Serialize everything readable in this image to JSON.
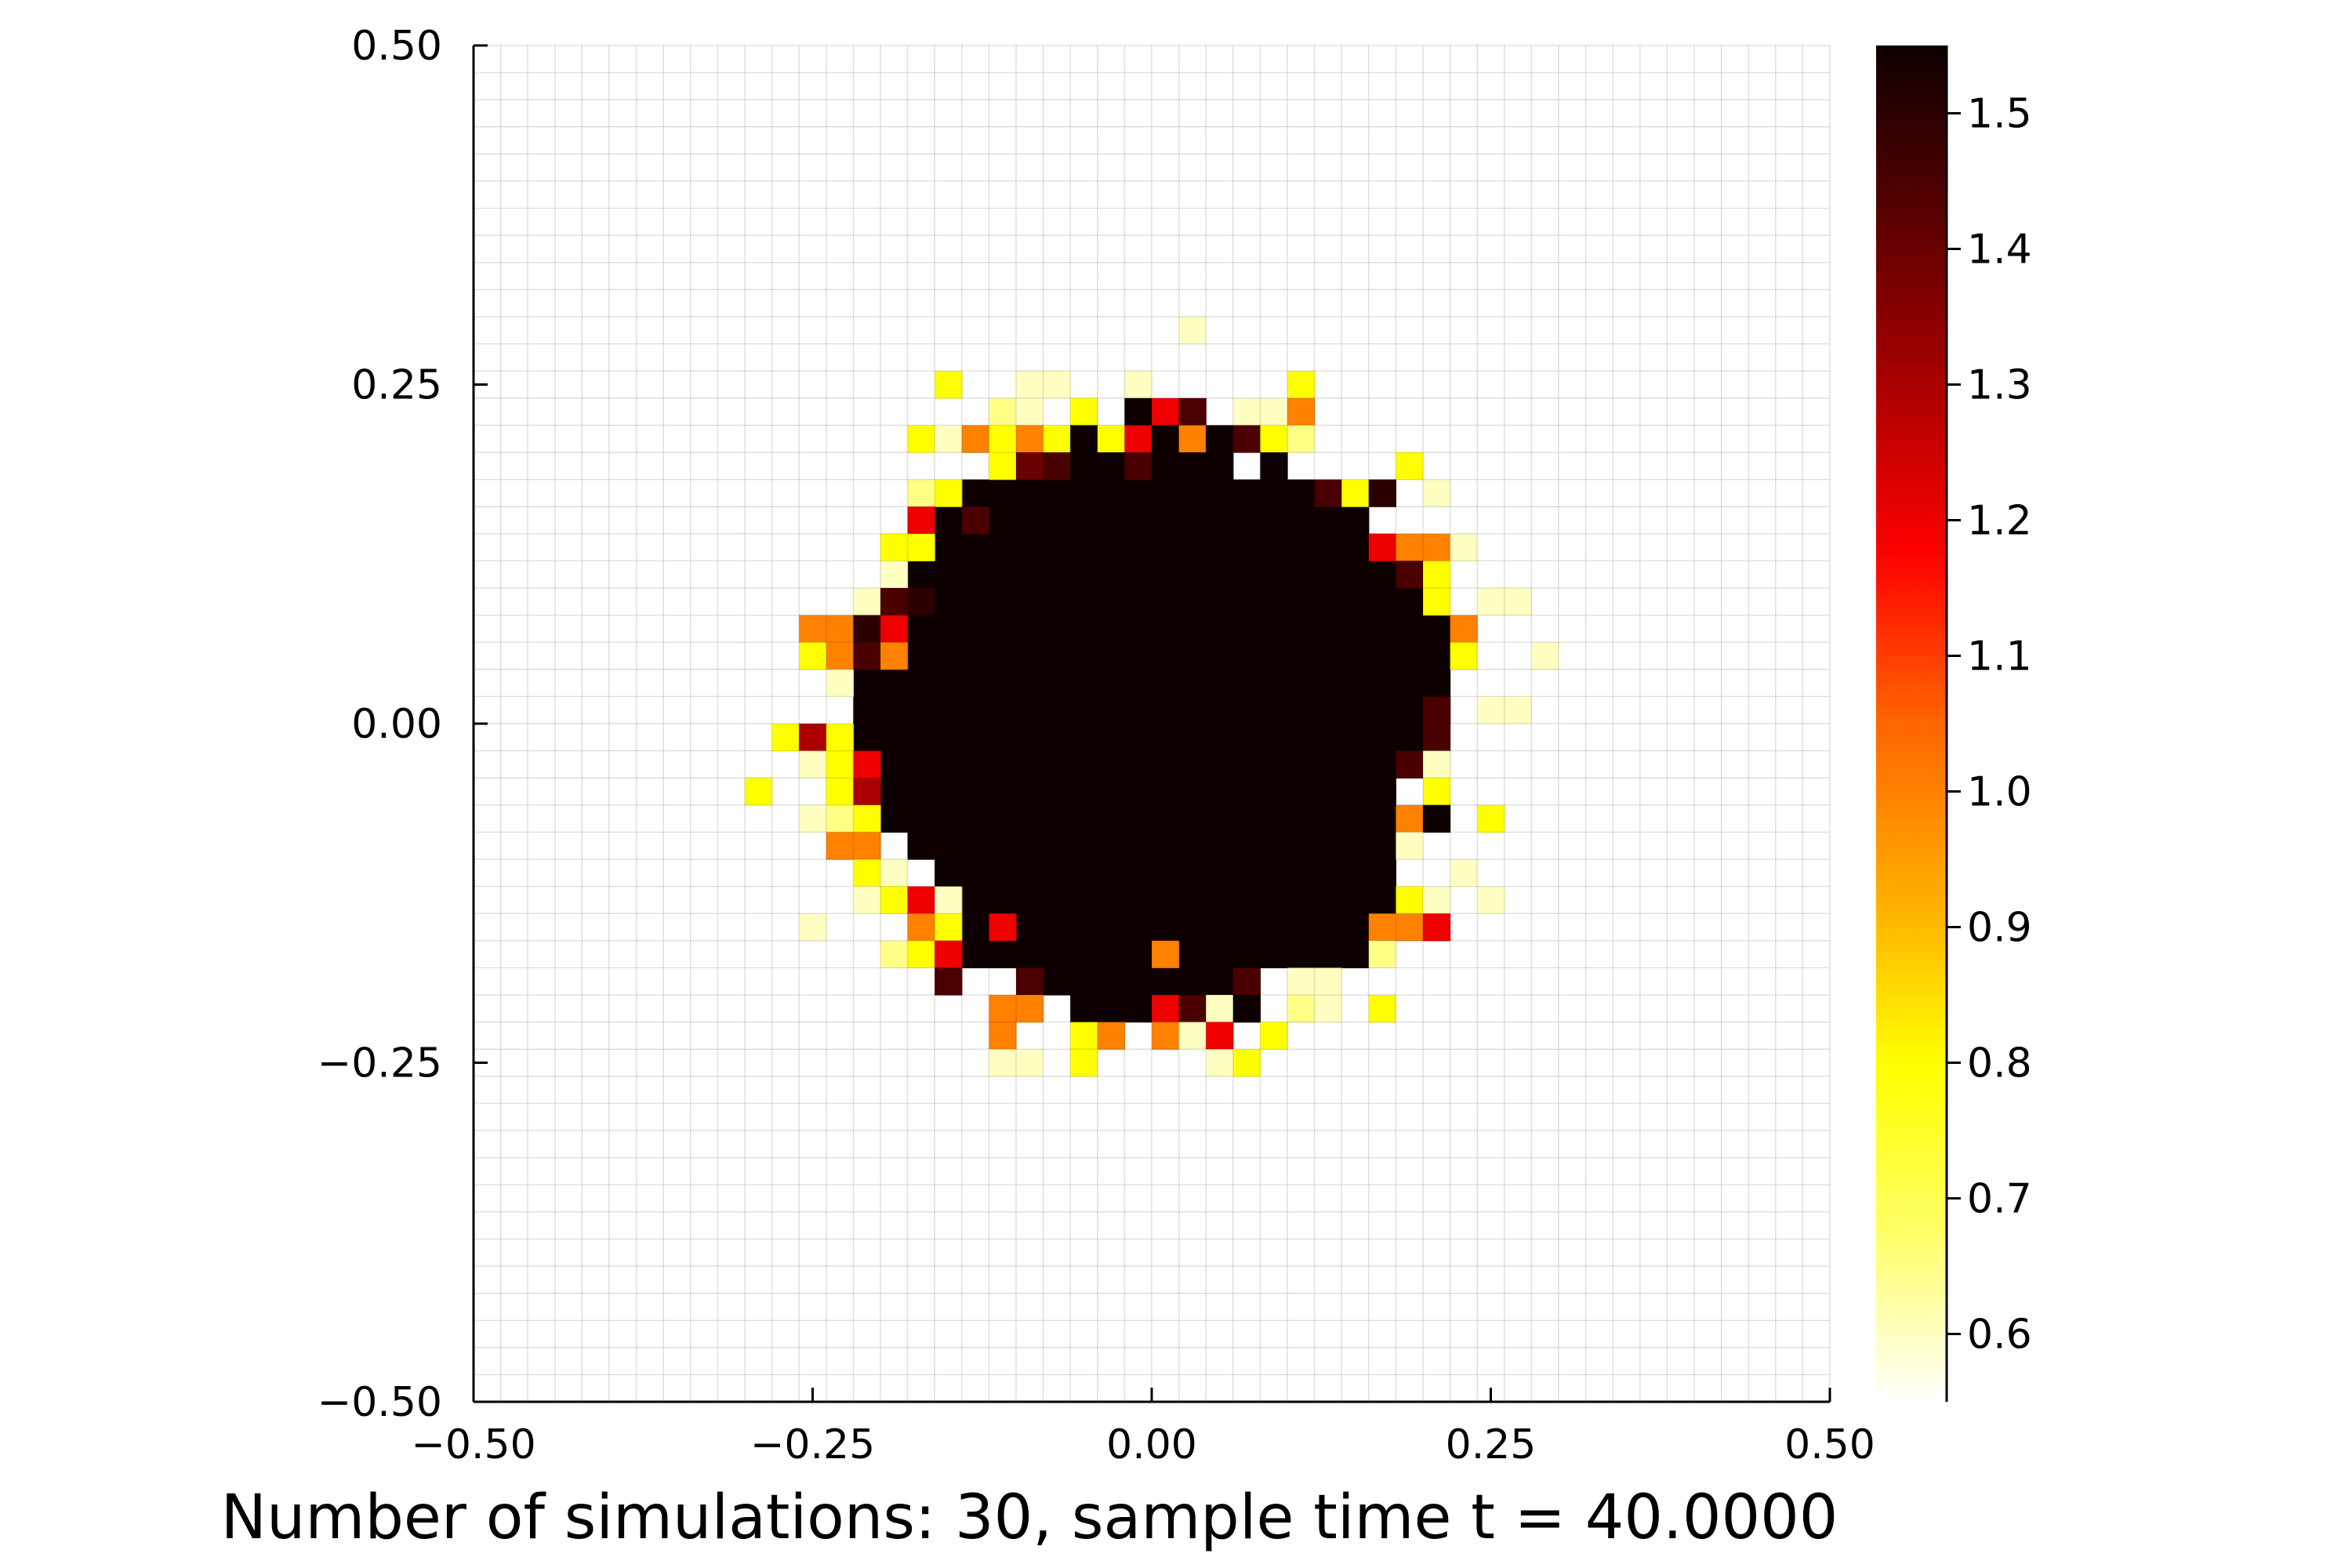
{
  "chart_data": {
    "type": "heatmap",
    "title": "",
    "xlabel": "Number of simulations: 30, sample time t = 40.0000",
    "ylabel": "",
    "xlim": [
      -0.5,
      0.5
    ],
    "ylim": [
      -0.5,
      0.5
    ],
    "grid": true,
    "grid_cells": 50,
    "cell_size": 0.02,
    "xticks": [
      -0.5,
      -0.25,
      0.0,
      0.25,
      0.5
    ],
    "xtick_labels": [
      "−0.50",
      "−0.25",
      "0.00",
      "0.25",
      "0.50"
    ],
    "yticks": [
      -0.5,
      -0.25,
      0.0,
      0.25,
      0.5
    ],
    "ytick_labels": [
      "−0.50",
      "−0.25",
      "0.00",
      "0.25",
      "0.50"
    ],
    "colorbar": {
      "colormap": "heat",
      "colors": [
        "#ffffff",
        "#ffff66",
        "#ffff00",
        "#ffaa00",
        "#ff6600",
        "#ff0000",
        "#aa0000",
        "#5a0000",
        "#0e0000"
      ],
      "range": [
        0.55,
        1.55
      ],
      "ticks": [
        0.6,
        0.7,
        0.8,
        0.9,
        1.0,
        1.1,
        1.2,
        1.3,
        1.4,
        1.5
      ],
      "tick_labels": [
        "0.6",
        "0.7",
        "0.8",
        "0.9",
        "1.0",
        "1.1",
        "1.2",
        "1.3",
        "1.4",
        "1.5"
      ]
    },
    "core_value": 1.55,
    "core_rows": [
      {
        "y": 0.17,
        "x_min": -0.13,
        "x_max": 0.11
      },
      {
        "y": 0.15,
        "x_min": -0.15,
        "x_max": 0.15
      },
      {
        "y": 0.13,
        "x_min": -0.15,
        "x_max": 0.17
      },
      {
        "y": 0.11,
        "x_min": -0.17,
        "x_max": 0.17
      },
      {
        "y": 0.09,
        "x_min": -0.17,
        "x_max": 0.19
      },
      {
        "y": 0.07,
        "x_min": -0.17,
        "x_max": 0.21
      },
      {
        "y": 0.05,
        "x_min": -0.17,
        "x_max": 0.21
      },
      {
        "y": 0.03,
        "x_min": -0.21,
        "x_max": 0.21
      },
      {
        "y": 0.01,
        "x_min": -0.21,
        "x_max": 0.21
      },
      {
        "y": -0.01,
        "x_min": -0.21,
        "x_max": 0.19
      },
      {
        "y": -0.03,
        "x_min": -0.21,
        "x_max": 0.19
      },
      {
        "y": -0.05,
        "x_min": -0.19,
        "x_max": 0.17
      },
      {
        "y": -0.07,
        "x_min": -0.19,
        "x_max": 0.17
      },
      {
        "y": -0.09,
        "x_min": -0.17,
        "x_max": 0.17
      },
      {
        "y": -0.11,
        "x_min": -0.15,
        "x_max": 0.17
      },
      {
        "y": -0.13,
        "x_min": -0.13,
        "x_max": 0.17
      },
      {
        "y": -0.15,
        "x_min": -0.13,
        "x_max": 0.15
      },
      {
        "y": -0.17,
        "x_min": -0.13,
        "x_max": 0.15
      },
      {
        "y": -0.19,
        "x_min": -0.07,
        "x_max": 0.07
      },
      {
        "y": -0.21,
        "x_min": -0.05,
        "x_max": 0.07
      }
    ],
    "points": [
      {
        "x": 0.03,
        "y": 0.29,
        "v": 0.6
      },
      {
        "x": -0.15,
        "y": 0.25,
        "v": 0.8
      },
      {
        "x": -0.09,
        "y": 0.25,
        "v": 0.6
      },
      {
        "x": -0.07,
        "y": 0.25,
        "v": 0.6
      },
      {
        "x": -0.01,
        "y": 0.25,
        "v": 0.6
      },
      {
        "x": 0.11,
        "y": 0.25,
        "v": 0.8
      },
      {
        "x": -0.11,
        "y": 0.23,
        "v": 0.65
      },
      {
        "x": -0.09,
        "y": 0.23,
        "v": 0.6
      },
      {
        "x": -0.05,
        "y": 0.23,
        "v": 0.8
      },
      {
        "x": -0.01,
        "y": 0.23,
        "v": 1.55
      },
      {
        "x": 0.01,
        "y": 0.23,
        "v": 1.2
      },
      {
        "x": 0.03,
        "y": 0.23,
        "v": 1.45
      },
      {
        "x": 0.07,
        "y": 0.23,
        "v": 0.6
      },
      {
        "x": 0.09,
        "y": 0.23,
        "v": 0.6
      },
      {
        "x": 0.11,
        "y": 0.23,
        "v": 1.0
      },
      {
        "x": -0.17,
        "y": 0.21,
        "v": 0.8
      },
      {
        "x": -0.15,
        "y": 0.21,
        "v": 0.6
      },
      {
        "x": -0.13,
        "y": 0.21,
        "v": 1.0
      },
      {
        "x": -0.11,
        "y": 0.21,
        "v": 0.8
      },
      {
        "x": -0.09,
        "y": 0.21,
        "v": 1.0
      },
      {
        "x": -0.07,
        "y": 0.21,
        "v": 0.8
      },
      {
        "x": -0.05,
        "y": 0.21,
        "v": 1.55
      },
      {
        "x": -0.03,
        "y": 0.21,
        "v": 0.8
      },
      {
        "x": -0.01,
        "y": 0.21,
        "v": 1.2
      },
      {
        "x": 0.01,
        "y": 0.21,
        "v": 1.55
      },
      {
        "x": 0.03,
        "y": 0.21,
        "v": 1.0
      },
      {
        "x": 0.05,
        "y": 0.21,
        "v": 1.55
      },
      {
        "x": 0.07,
        "y": 0.21,
        "v": 1.45
      },
      {
        "x": 0.09,
        "y": 0.21,
        "v": 0.8
      },
      {
        "x": 0.11,
        "y": 0.21,
        "v": 0.65
      },
      {
        "x": -0.11,
        "y": 0.19,
        "v": 0.8
      },
      {
        "x": -0.09,
        "y": 0.19,
        "v": 1.4
      },
      {
        "x": -0.07,
        "y": 0.19,
        "v": 1.45
      },
      {
        "x": -0.05,
        "y": 0.19,
        "v": 1.55
      },
      {
        "x": -0.03,
        "y": 0.19,
        "v": 1.55
      },
      {
        "x": -0.01,
        "y": 0.19,
        "v": 1.45
      },
      {
        "x": 0.01,
        "y": 0.19,
        "v": 1.55
      },
      {
        "x": 0.03,
        "y": 0.19,
        "v": 1.55
      },
      {
        "x": 0.05,
        "y": 0.19,
        "v": 1.55
      },
      {
        "x": 0.09,
        "y": 0.19,
        "v": 1.55
      },
      {
        "x": 0.19,
        "y": 0.19,
        "v": 0.8
      },
      {
        "x": -0.17,
        "y": 0.17,
        "v": 0.65
      },
      {
        "x": -0.15,
        "y": 0.17,
        "v": 0.8
      },
      {
        "x": 0.13,
        "y": 0.17,
        "v": 1.45
      },
      {
        "x": 0.15,
        "y": 0.17,
        "v": 0.8
      },
      {
        "x": 0.17,
        "y": 0.17,
        "v": 1.5
      },
      {
        "x": 0.21,
        "y": 0.17,
        "v": 0.6
      },
      {
        "x": -0.17,
        "y": 0.15,
        "v": 1.2
      },
      {
        "x": -0.13,
        "y": 0.15,
        "v": 1.45
      },
      {
        "x": -0.19,
        "y": 0.13,
        "v": 0.8
      },
      {
        "x": -0.17,
        "y": 0.13,
        "v": 0.8
      },
      {
        "x": 0.17,
        "y": 0.13,
        "v": 1.2
      },
      {
        "x": 0.19,
        "y": 0.13,
        "v": 1.0
      },
      {
        "x": 0.21,
        "y": 0.13,
        "v": 1.0
      },
      {
        "x": 0.23,
        "y": 0.13,
        "v": 0.6
      },
      {
        "x": -0.19,
        "y": 0.11,
        "v": 0.6
      },
      {
        "x": 0.19,
        "y": 0.11,
        "v": 1.45
      },
      {
        "x": 0.21,
        "y": 0.11,
        "v": 0.8
      },
      {
        "x": -0.21,
        "y": 0.09,
        "v": 0.6
      },
      {
        "x": -0.19,
        "y": 0.09,
        "v": 1.45
      },
      {
        "x": -0.17,
        "y": 0.09,
        "v": 1.5
      },
      {
        "x": 0.21,
        "y": 0.09,
        "v": 0.8
      },
      {
        "x": 0.25,
        "y": 0.09,
        "v": 0.6
      },
      {
        "x": 0.27,
        "y": 0.09,
        "v": 0.6
      },
      {
        "x": -0.25,
        "y": 0.07,
        "v": 1.0
      },
      {
        "x": -0.23,
        "y": 0.07,
        "v": 1.0
      },
      {
        "x": -0.21,
        "y": 0.07,
        "v": 1.5
      },
      {
        "x": -0.19,
        "y": 0.07,
        "v": 1.2
      },
      {
        "x": 0.23,
        "y": 0.07,
        "v": 1.0
      },
      {
        "x": -0.25,
        "y": 0.05,
        "v": 0.8
      },
      {
        "x": -0.23,
        "y": 0.05,
        "v": 1.0
      },
      {
        "x": -0.21,
        "y": 0.05,
        "v": 1.45
      },
      {
        "x": -0.19,
        "y": 0.05,
        "v": 1.0
      },
      {
        "x": 0.23,
        "y": 0.05,
        "v": 0.8
      },
      {
        "x": 0.29,
        "y": 0.05,
        "v": 0.6
      },
      {
        "x": -0.23,
        "y": 0.03,
        "v": 0.6
      },
      {
        "x": 0.21,
        "y": 0.01,
        "v": 1.45
      },
      {
        "x": 0.25,
        "y": 0.01,
        "v": 0.6
      },
      {
        "x": 0.27,
        "y": 0.01,
        "v": 0.6
      },
      {
        "x": -0.27,
        "y": -0.01,
        "v": 0.8
      },
      {
        "x": -0.25,
        "y": -0.01,
        "v": 1.3
      },
      {
        "x": -0.23,
        "y": -0.01,
        "v": 0.8
      },
      {
        "x": 0.21,
        "y": -0.01,
        "v": 1.45
      },
      {
        "x": -0.25,
        "y": -0.03,
        "v": 0.6
      },
      {
        "x": -0.23,
        "y": -0.03,
        "v": 0.8
      },
      {
        "x": -0.21,
        "y": -0.03,
        "v": 1.2
      },
      {
        "x": 0.19,
        "y": -0.03,
        "v": 1.45
      },
      {
        "x": 0.21,
        "y": -0.03,
        "v": 0.6
      },
      {
        "x": -0.29,
        "y": -0.05,
        "v": 0.8
      },
      {
        "x": -0.23,
        "y": -0.05,
        "v": 0.8
      },
      {
        "x": -0.21,
        "y": -0.05,
        "v": 1.3
      },
      {
        "x": 0.21,
        "y": -0.05,
        "v": 0.8
      },
      {
        "x": -0.25,
        "y": -0.07,
        "v": 0.6
      },
      {
        "x": -0.23,
        "y": -0.07,
        "v": 0.65
      },
      {
        "x": -0.21,
        "y": -0.07,
        "v": 0.8
      },
      {
        "x": 0.19,
        "y": -0.07,
        "v": 1.0
      },
      {
        "x": 0.21,
        "y": -0.07,
        "v": 1.55
      },
      {
        "x": 0.25,
        "y": -0.07,
        "v": 0.8
      },
      {
        "x": -0.23,
        "y": -0.09,
        "v": 1.0
      },
      {
        "x": -0.21,
        "y": -0.09,
        "v": 1.0
      },
      {
        "x": 0.19,
        "y": -0.09,
        "v": 0.6
      },
      {
        "x": -0.21,
        "y": -0.11,
        "v": 0.8
      },
      {
        "x": -0.19,
        "y": -0.11,
        "v": 0.6
      },
      {
        "x": 0.23,
        "y": -0.11,
        "v": 0.6
      },
      {
        "x": -0.21,
        "y": -0.13,
        "v": 0.6
      },
      {
        "x": -0.19,
        "y": -0.13,
        "v": 0.8
      },
      {
        "x": -0.17,
        "y": -0.13,
        "v": 1.2
      },
      {
        "x": -0.15,
        "y": -0.13,
        "v": 0.6
      },
      {
        "x": 0.19,
        "y": -0.13,
        "v": 0.8
      },
      {
        "x": 0.21,
        "y": -0.13,
        "v": 0.6
      },
      {
        "x": 0.25,
        "y": -0.13,
        "v": 0.6
      },
      {
        "x": -0.25,
        "y": -0.15,
        "v": 0.6
      },
      {
        "x": -0.17,
        "y": -0.15,
        "v": 1.0
      },
      {
        "x": -0.15,
        "y": -0.15,
        "v": 0.8
      },
      {
        "x": -0.11,
        "y": -0.15,
        "v": 1.2
      },
      {
        "x": 0.17,
        "y": -0.15,
        "v": 1.0
      },
      {
        "x": 0.19,
        "y": -0.15,
        "v": 1.0
      },
      {
        "x": 0.21,
        "y": -0.15,
        "v": 1.2
      },
      {
        "x": -0.19,
        "y": -0.17,
        "v": 0.65
      },
      {
        "x": -0.17,
        "y": -0.17,
        "v": 0.8
      },
      {
        "x": -0.15,
        "y": -0.17,
        "v": 1.2
      },
      {
        "x": 0.01,
        "y": -0.17,
        "v": 1.0
      },
      {
        "x": 0.17,
        "y": -0.17,
        "v": 0.65
      },
      {
        "x": -0.15,
        "y": -0.19,
        "v": 1.45
      },
      {
        "x": -0.09,
        "y": -0.19,
        "v": 1.45
      },
      {
        "x": 0.07,
        "y": -0.19,
        "v": 1.45
      },
      {
        "x": 0.11,
        "y": -0.19,
        "v": 0.6
      },
      {
        "x": 0.13,
        "y": -0.19,
        "v": 0.6
      },
      {
        "x": -0.11,
        "y": -0.21,
        "v": 1.0
      },
      {
        "x": -0.09,
        "y": -0.21,
        "v": 1.0
      },
      {
        "x": 0.01,
        "y": -0.21,
        "v": 1.2
      },
      {
        "x": 0.03,
        "y": -0.21,
        "v": 1.45
      },
      {
        "x": 0.05,
        "y": -0.21,
        "v": 0.6
      },
      {
        "x": 0.07,
        "y": -0.21,
        "v": 1.55
      },
      {
        "x": 0.11,
        "y": -0.21,
        "v": 0.65
      },
      {
        "x": 0.13,
        "y": -0.21,
        "v": 0.6
      },
      {
        "x": 0.17,
        "y": -0.21,
        "v": 0.8
      },
      {
        "x": -0.11,
        "y": -0.23,
        "v": 1.0
      },
      {
        "x": -0.05,
        "y": -0.23,
        "v": 0.8
      },
      {
        "x": -0.03,
        "y": -0.23,
        "v": 1.0
      },
      {
        "x": 0.01,
        "y": -0.23,
        "v": 1.0
      },
      {
        "x": 0.03,
        "y": -0.23,
        "v": 0.6
      },
      {
        "x": 0.05,
        "y": -0.23,
        "v": 1.2
      },
      {
        "x": 0.09,
        "y": -0.23,
        "v": 0.8
      },
      {
        "x": -0.11,
        "y": -0.25,
        "v": 0.6
      },
      {
        "x": -0.09,
        "y": -0.25,
        "v": 0.6
      },
      {
        "x": -0.05,
        "y": -0.25,
        "v": 0.8
      },
      {
        "x": 0.05,
        "y": -0.25,
        "v": 0.6
      },
      {
        "x": 0.07,
        "y": -0.25,
        "v": 0.8
      }
    ]
  }
}
